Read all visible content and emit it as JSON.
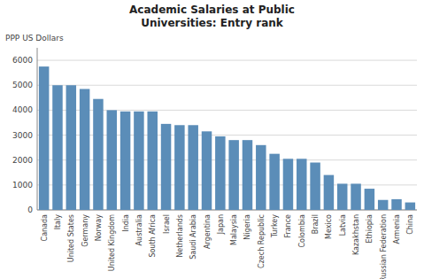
{
  "chart_data": {
    "type": "bar",
    "title": "Academic Salaries at Public\nUniversities: Entry rank",
    "ylabel": "PPP US Dollars",
    "categories": [
      "Canada",
      "Italy",
      "United States",
      "Germany",
      "Norway",
      "United Kingdom",
      "India",
      "Australia",
      "South Africa",
      "Israel",
      "Netherlands",
      "Saudi Arabia",
      "Argentina",
      "Japan",
      "Malaysia",
      "Nigeria",
      "Czech Republic",
      "Turkey",
      "France",
      "Colombia",
      "Brazil",
      "Mexico",
      "Latvia",
      "Kazakhstan",
      "Ethiopia",
      "Russian Federation",
      "Armenia",
      "China"
    ],
    "values": [
      5750,
      5000,
      5000,
      4850,
      4450,
      4000,
      3950,
      3950,
      3950,
      3450,
      3400,
      3400,
      3150,
      2950,
      2800,
      2800,
      2600,
      2250,
      2050,
      2050,
      1900,
      1400,
      1050,
      1050,
      850,
      400,
      430,
      300
    ],
    "color": "#5b8db8",
    "ylim": [
      0,
      6500
    ],
    "yticks": [
      0,
      1000,
      2000,
      3000,
      4000,
      5000,
      6000
    ],
    "grid": true
  }
}
